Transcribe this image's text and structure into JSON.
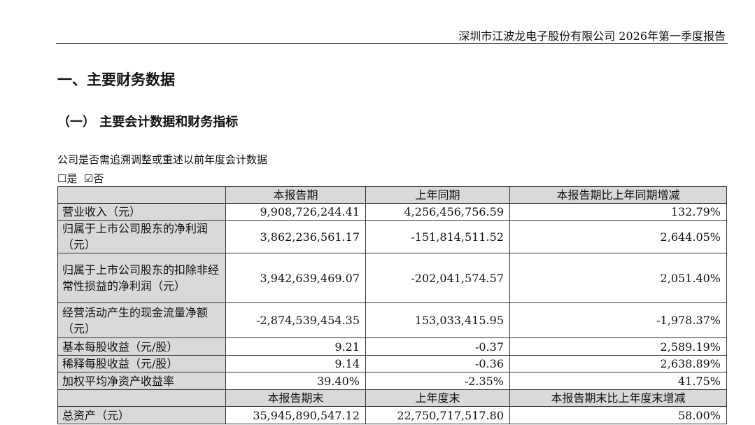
{
  "header": {
    "title": "深圳市江波龙电子股份有限公司 2026年第一季度报告"
  },
  "section_title": "一、主要财务数据",
  "subsection_title": "（一） 主要会计数据和财务指标",
  "question": "公司是否需追溯调整或重述以前年度会计数据",
  "options": {
    "yes": "☐是",
    "no": "☑否"
  },
  "table": {
    "header1": [
      "",
      "本报告期",
      "上年同期",
      "本报告期比上年同期增减"
    ],
    "rows1": [
      [
        "营业收入（元）",
        "9,908,726,244.41",
        "4,256,456,756.59",
        "132.79%"
      ],
      [
        "归属于上市公司股东的净利润（元）",
        "3,862,236,561.17",
        "-151,814,511.52",
        "2,644.05%"
      ],
      [
        "归属于上市公司股东的扣除非经常性损益的净利润（元）",
        "3,942,639,469.07",
        "-202,041,574.57",
        "2,051.40%"
      ],
      [
        "经营活动产生的现金流量净额（元）",
        "-2,874,539,454.35",
        "153,033,415.95",
        "-1,978.37%"
      ],
      [
        "基本每股收益（元/股）",
        "9.21",
        "-0.37",
        "2,589.19%"
      ],
      [
        "稀释每股收益（元/股）",
        "9.14",
        "-0.36",
        "2,638.89%"
      ],
      [
        "加权平均净资产收益率",
        "39.40%",
        "-2.35%",
        "41.75%"
      ]
    ],
    "header2": [
      "",
      "本报告期末",
      "上年度末",
      "本报告期末比上年度末增减"
    ],
    "rows2": [
      [
        "总资产（元）",
        "35,945,890,547.12",
        "22,750,717,517.80",
        "58.00%"
      ]
    ]
  }
}
